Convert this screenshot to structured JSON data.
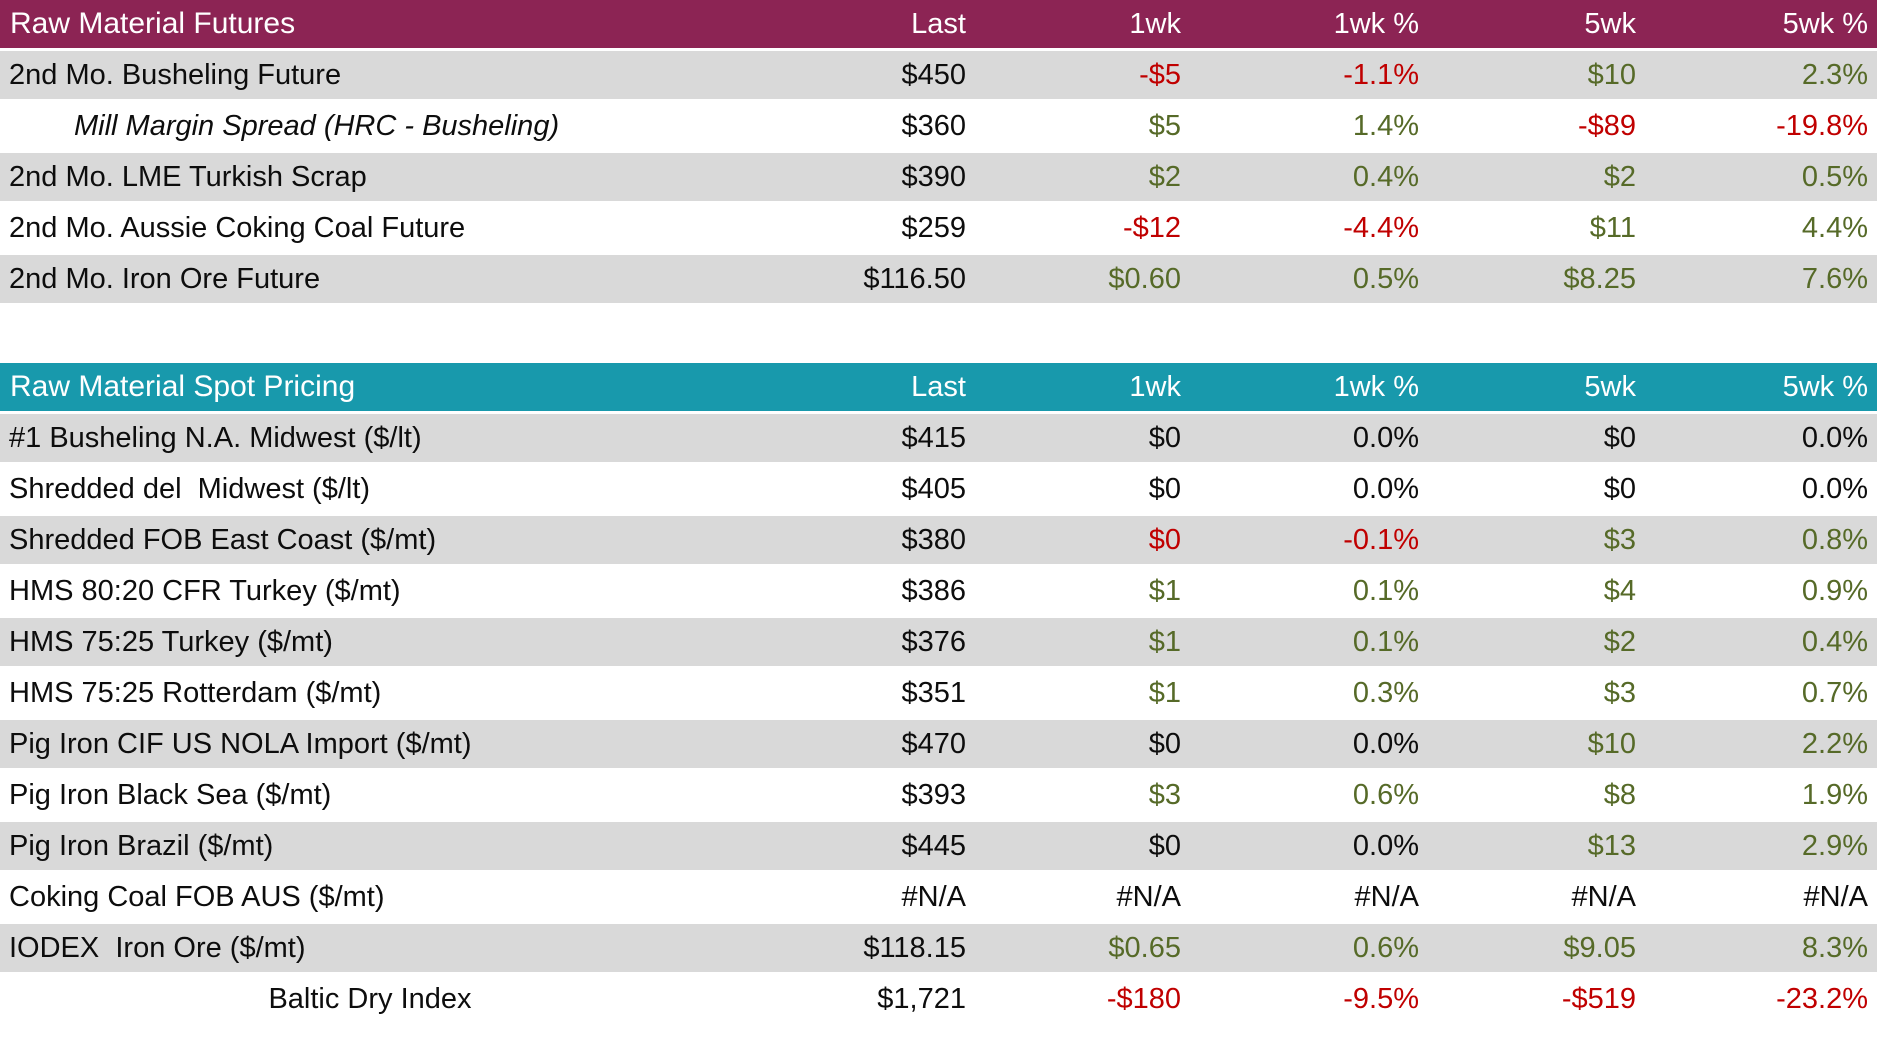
{
  "colors": {
    "futures_header_bg": "#8C2454",
    "spot_header_bg": "#1899AC",
    "stripe_gray": "#D9D9D9",
    "row_separator": "#FFFFFF",
    "positive_text": "#566A28",
    "negative_text": "#C00000",
    "neutral_text": "#0D0D0D",
    "header_text": "#FFFFFF"
  },
  "chart_data": [
    {
      "type": "table",
      "title": "Raw Material Futures",
      "header_color": "#8C2454",
      "columns": [
        "Last",
        "1wk",
        "1wk %",
        "5wk",
        "5wk %"
      ],
      "rows": [
        {
          "label": "2nd Mo. Busheling Future",
          "style": "normal",
          "cells": [
            [
              "$450",
              "black"
            ],
            [
              "-$5",
              "red"
            ],
            [
              "-1.1%",
              "red"
            ],
            [
              "$10",
              "green"
            ],
            [
              "2.3%",
              "green"
            ]
          ]
        },
        {
          "label": "Mill Margin Spread (HRC - Busheling)",
          "style": "indent-italic",
          "cells": [
            [
              "$360",
              "black"
            ],
            [
              "$5",
              "green"
            ],
            [
              "1.4%",
              "green"
            ],
            [
              "-$89",
              "red"
            ],
            [
              "-19.8%",
              "red"
            ]
          ]
        },
        {
          "label": "2nd Mo. LME Turkish Scrap",
          "style": "normal",
          "cells": [
            [
              "$390",
              "black"
            ],
            [
              "$2",
              "green"
            ],
            [
              "0.4%",
              "green"
            ],
            [
              "$2",
              "green"
            ],
            [
              "0.5%",
              "green"
            ]
          ]
        },
        {
          "label": "2nd Mo. Aussie Coking Coal Future",
          "style": "normal",
          "cells": [
            [
              "$259",
              "black"
            ],
            [
              "-$12",
              "red"
            ],
            [
              "-4.4%",
              "red"
            ],
            [
              "$11",
              "green"
            ],
            [
              "4.4%",
              "green"
            ]
          ]
        },
        {
          "label": "2nd Mo. Iron Ore Future",
          "style": "normal",
          "cells": [
            [
              "$116.50",
              "black"
            ],
            [
              "$0.60",
              "green"
            ],
            [
              "0.5%",
              "green"
            ],
            [
              "$8.25",
              "green"
            ],
            [
              "7.6%",
              "green"
            ]
          ]
        }
      ]
    },
    {
      "type": "table",
      "title": "Raw Material Spot Pricing",
      "header_color": "#1899AC",
      "columns": [
        "Last",
        "1wk",
        "1wk %",
        "5wk",
        "5wk %"
      ],
      "rows": [
        {
          "label": "#1 Busheling N.A. Midwest ($/lt)",
          "style": "normal",
          "cells": [
            [
              "$415",
              "black"
            ],
            [
              "$0",
              "black"
            ],
            [
              "0.0%",
              "black"
            ],
            [
              "$0",
              "black"
            ],
            [
              "0.0%",
              "black"
            ]
          ]
        },
        {
          "label": "Shredded del  Midwest ($/lt)",
          "style": "normal",
          "cells": [
            [
              "$405",
              "black"
            ],
            [
              "$0",
              "black"
            ],
            [
              "0.0%",
              "black"
            ],
            [
              "$0",
              "black"
            ],
            [
              "0.0%",
              "black"
            ]
          ]
        },
        {
          "label": "Shredded FOB East Coast ($/mt)",
          "style": "normal",
          "cells": [
            [
              "$380",
              "black"
            ],
            [
              "$0",
              "red"
            ],
            [
              "-0.1%",
              "red"
            ],
            [
              "$3",
              "green"
            ],
            [
              "0.8%",
              "green"
            ]
          ]
        },
        {
          "label": "HMS 80:20 CFR Turkey ($/mt)",
          "style": "normal",
          "cells": [
            [
              "$386",
              "black"
            ],
            [
              "$1",
              "green"
            ],
            [
              "0.1%",
              "green"
            ],
            [
              "$4",
              "green"
            ],
            [
              "0.9%",
              "green"
            ]
          ]
        },
        {
          "label": "HMS 75:25 Turkey ($/mt)",
          "style": "normal",
          "cells": [
            [
              "$376",
              "black"
            ],
            [
              "$1",
              "green"
            ],
            [
              "0.1%",
              "green"
            ],
            [
              "$2",
              "green"
            ],
            [
              "0.4%",
              "green"
            ]
          ]
        },
        {
          "label": "HMS 75:25 Rotterdam ($/mt)",
          "style": "normal",
          "cells": [
            [
              "$351",
              "black"
            ],
            [
              "$1",
              "green"
            ],
            [
              "0.3%",
              "green"
            ],
            [
              "$3",
              "green"
            ],
            [
              "0.7%",
              "green"
            ]
          ]
        },
        {
          "label": "Pig Iron CIF US NOLA Import ($/mt)",
          "style": "normal",
          "cells": [
            [
              "$470",
              "black"
            ],
            [
              "$0",
              "black"
            ],
            [
              "0.0%",
              "black"
            ],
            [
              "$10",
              "green"
            ],
            [
              "2.2%",
              "green"
            ]
          ]
        },
        {
          "label": "Pig Iron Black Sea ($/mt)",
          "style": "normal",
          "cells": [
            [
              "$393",
              "black"
            ],
            [
              "$3",
              "green"
            ],
            [
              "0.6%",
              "green"
            ],
            [
              "$8",
              "green"
            ],
            [
              "1.9%",
              "green"
            ]
          ]
        },
        {
          "label": "Pig Iron Brazil ($/mt)",
          "style": "normal",
          "cells": [
            [
              "$445",
              "black"
            ],
            [
              "$0",
              "black"
            ],
            [
              "0.0%",
              "black"
            ],
            [
              "$13",
              "green"
            ],
            [
              "2.9%",
              "green"
            ]
          ]
        },
        {
          "label": "Coking Coal FOB AUS ($/mt)",
          "style": "normal",
          "cells": [
            [
              "#N/A",
              "black"
            ],
            [
              "#N/A",
              "black"
            ],
            [
              "#N/A",
              "black"
            ],
            [
              "#N/A",
              "black"
            ],
            [
              "#N/A",
              "black"
            ]
          ]
        },
        {
          "label": "IODEX  Iron Ore ($/mt)",
          "style": "normal",
          "cells": [
            [
              "$118.15",
              "black"
            ],
            [
              "$0.65",
              "green"
            ],
            [
              "0.6%",
              "green"
            ],
            [
              "$9.05",
              "green"
            ],
            [
              "8.3%",
              "green"
            ]
          ]
        },
        {
          "label": "Baltic Dry Index",
          "style": "center",
          "cells": [
            [
              "$1,721",
              "black"
            ],
            [
              "-$180",
              "red"
            ],
            [
              "-9.5%",
              "red"
            ],
            [
              "-$519",
              "red"
            ],
            [
              "-23.2%",
              "red"
            ]
          ]
        }
      ]
    }
  ]
}
